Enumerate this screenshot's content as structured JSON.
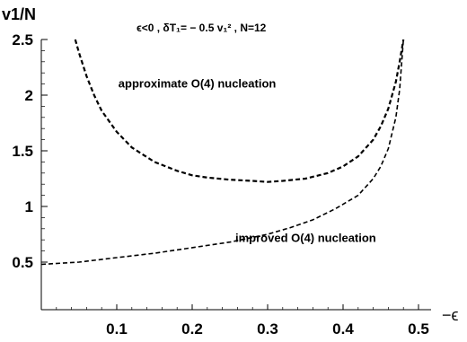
{
  "chart_data": {
    "type": "line",
    "title": "ϵ<0  , δT₁= − 0.5 v₁²  , N=12",
    "xlabel": "−ϵ",
    "ylabel": "v1/N",
    "xlim": [
      0,
      0.5
    ],
    "ylim": [
      0.3,
      2.5
    ],
    "x_ticks": [
      "0.1",
      "0.2",
      "0.3",
      "0.4",
      "0.5"
    ],
    "y_ticks": [
      "0.5",
      "1",
      "1.5",
      "2",
      "2.5"
    ],
    "grid": false,
    "series": [
      {
        "name": "approximate O(4)  nucleation",
        "style": "dashed",
        "x": [
          0.045,
          0.05,
          0.06,
          0.07,
          0.08,
          0.1,
          0.12,
          0.15,
          0.18,
          0.2,
          0.22,
          0.25,
          0.28,
          0.3,
          0.32,
          0.35,
          0.38,
          0.4,
          0.42,
          0.44,
          0.45,
          0.46,
          0.47,
          0.475,
          0.48
        ],
        "y": [
          2.5,
          2.38,
          2.17,
          2.0,
          1.86,
          1.67,
          1.53,
          1.4,
          1.32,
          1.28,
          1.26,
          1.24,
          1.23,
          1.22,
          1.23,
          1.25,
          1.3,
          1.36,
          1.45,
          1.6,
          1.72,
          1.88,
          2.12,
          2.3,
          2.5
        ]
      },
      {
        "name": "improved O(4)  nucleation",
        "style": "dashed",
        "x": [
          0.0,
          0.05,
          0.1,
          0.15,
          0.2,
          0.25,
          0.3,
          0.33,
          0.36,
          0.39,
          0.42,
          0.44,
          0.45,
          0.46,
          0.47,
          0.475,
          0.48
        ],
        "y": [
          0.48,
          0.5,
          0.54,
          0.58,
          0.63,
          0.68,
          0.75,
          0.81,
          0.88,
          0.98,
          1.1,
          1.25,
          1.36,
          1.52,
          1.8,
          2.05,
          2.5
        ]
      }
    ],
    "annotations": [
      {
        "text": "approximate O(4)  nucleation",
        "x": 0.045,
        "y": 2.07
      },
      {
        "text": "improved O(4)  nucleation",
        "x": 0.2,
        "y": 0.68
      }
    ]
  }
}
